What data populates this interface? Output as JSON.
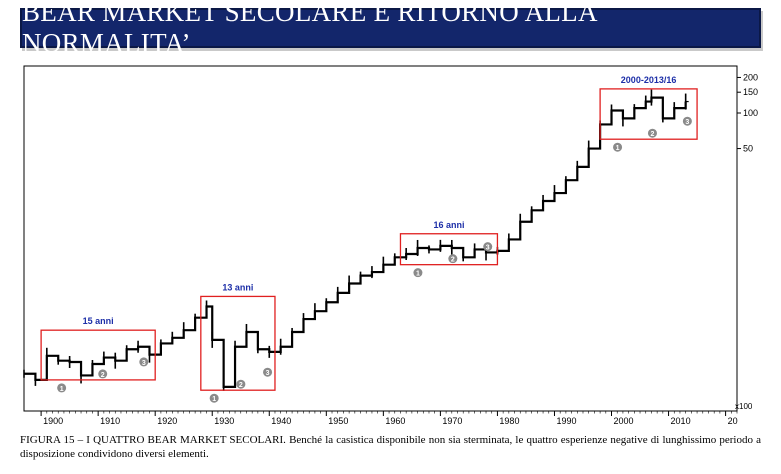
{
  "banner": {
    "title": "BEAR MARKET SECOLARE E RITORNO ALLA NORMALITA’"
  },
  "chart_data": {
    "type": "line",
    "style": "bar-ohlc",
    "x_ticks": [
      "1900",
      "1910",
      "1920",
      "1930",
      "1940",
      "1950",
      "1960",
      "1970",
      "1980",
      "1990",
      "2000",
      "2010",
      "20"
    ],
    "y_ticks": [
      "200",
      "150",
      "100",
      "50"
    ],
    "y_scale": "log",
    "y_unit": "x100",
    "xlim": [
      1897,
      2022
    ],
    "series_color": "#000000",
    "x": [
      1897,
      1899,
      1901,
      1903,
      1905,
      1907,
      1909,
      1911,
      1913,
      1915,
      1917,
      1919,
      1921,
      1923,
      1925,
      1927,
      1929,
      1930,
      1932,
      1934,
      1936,
      1938,
      1940,
      1942,
      1944,
      1946,
      1948,
      1950,
      1952,
      1954,
      1956,
      1958,
      1960,
      1962,
      1964,
      1966,
      1968,
      1970,
      1972,
      1974,
      1976,
      1978,
      1980,
      1982,
      1984,
      1986,
      1988,
      1990,
      1992,
      1994,
      1996,
      1998,
      2000,
      2002,
      2004,
      2006,
      2007,
      2009,
      2011,
      2013
    ],
    "y": [
      0.62,
      0.55,
      0.88,
      0.8,
      0.78,
      0.6,
      0.75,
      0.85,
      0.8,
      1.0,
      1.05,
      0.9,
      1.12,
      1.25,
      1.45,
      1.85,
      2.3,
      1.2,
      0.48,
      1.05,
      1.4,
      1.0,
      0.95,
      1.05,
      1.4,
      1.8,
      2.1,
      2.5,
      3.0,
      3.6,
      4.2,
      4.5,
      5.2,
      6.0,
      6.4,
      7.2,
      7.0,
      7.5,
      7.2,
      6.0,
      7.0,
      6.6,
      6.8,
      8.5,
      12.0,
      15.0,
      18.0,
      21.0,
      27.0,
      35.0,
      50.0,
      80.0,
      105.0,
      90.0,
      110.0,
      125.0,
      135.0,
      90.0,
      110.0,
      125.0
    ]
  },
  "annotations": {
    "periods": [
      {
        "label": "15 anni",
        "from": 1900,
        "to": 1920,
        "y_low": 0.55,
        "y_high": 1.45,
        "markers": [
          "1",
          "2",
          "3"
        ]
      },
      {
        "label": "13 anni",
        "from": 1928,
        "to": 1941,
        "y_low": 0.45,
        "y_high": 2.8,
        "markers": [
          "1",
          "2",
          "3"
        ]
      },
      {
        "label": "16 anni",
        "from": 1963,
        "to": 1980,
        "y_low": 5.2,
        "y_high": 9.5,
        "markers": [
          "1",
          "2",
          "3"
        ]
      },
      {
        "label": "2000-2013/16",
        "from": 1998,
        "to": 2015,
        "y_low": 60.0,
        "y_high": 160.0,
        "markers": [
          "1",
          "2",
          "3"
        ]
      }
    ]
  },
  "caption": {
    "text": "FIGURA 15 – I QUATTRO BEAR MARKET SECOLARI. Benché la casistica disponibile non sia sterminata, le quattro esperienze negative di lunghissimo periodo a disposizione condividono diversi elementi."
  },
  "colors": {
    "banner_bg": "#13266b",
    "box": "#e02020",
    "period_label": "#1d2fa8",
    "marker": "#8a8a8a"
  }
}
